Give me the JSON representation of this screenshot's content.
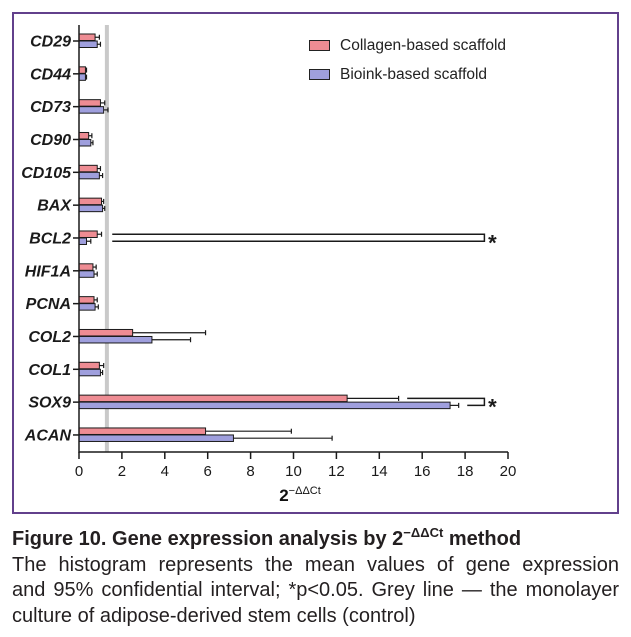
{
  "colors": {
    "frame": "#62408c",
    "text": "#231f20"
  },
  "chart_data": {
    "type": "bar",
    "orientation": "horizontal",
    "categories": [
      "CD29",
      "CD44",
      "CD73",
      "CD90",
      "CD105",
      "BAX",
      "BCL2",
      "HIF1A",
      "PCNA",
      "COL2",
      "COL1",
      "SOX9",
      "ACAN"
    ],
    "series": [
      {
        "name": "Collagen-based scaffold",
        "color": "#ee8c93",
        "values": [
          0.75,
          0.3,
          1.0,
          0.45,
          0.85,
          1.05,
          0.85,
          0.65,
          0.7,
          2.5,
          0.95,
          12.5,
          5.9
        ],
        "ci_upper": [
          0.95,
          0.35,
          1.2,
          0.6,
          1.0,
          1.15,
          1.05,
          0.8,
          0.85,
          5.9,
          1.15,
          14.9,
          9.9
        ]
      },
      {
        "name": "Bioink-based scaffold",
        "color": "#9f9fdd",
        "values": [
          0.85,
          0.3,
          1.15,
          0.55,
          0.95,
          1.1,
          0.35,
          0.7,
          0.75,
          3.4,
          1.0,
          17.3,
          7.2
        ],
        "ci_upper": [
          1.0,
          0.35,
          1.35,
          0.65,
          1.1,
          1.2,
          0.55,
          0.85,
          0.9,
          5.2,
          1.1,
          17.7,
          11.8
        ]
      }
    ],
    "xlabel": {
      "base": "2",
      "sup": "−ΔΔCt"
    },
    "xlim": [
      0,
      20
    ],
    "xticks": [
      0,
      2,
      4,
      6,
      8,
      10,
      12,
      14,
      16,
      18,
      20
    ],
    "control_line": {
      "value": 1.3,
      "color": "#c9c9c9"
    },
    "significance": [
      {
        "category": "BCL2",
        "label": "*"
      },
      {
        "category": "SOX9",
        "label": "*"
      }
    ],
    "legend_position": "top-right",
    "grid": false
  },
  "caption": {
    "title_prefix": "Figure 10. Gene expression analysis by ",
    "title_base": "2",
    "title_sup": "−ΔΔCt",
    "title_suffix": " method",
    "lines": [
      "The histogram represents the mean values of gene expression",
      "and 95% confidential interval; *p<0.05. Grey line — the monolayer",
      "culture of adipose-derived stem cells (control)"
    ]
  }
}
